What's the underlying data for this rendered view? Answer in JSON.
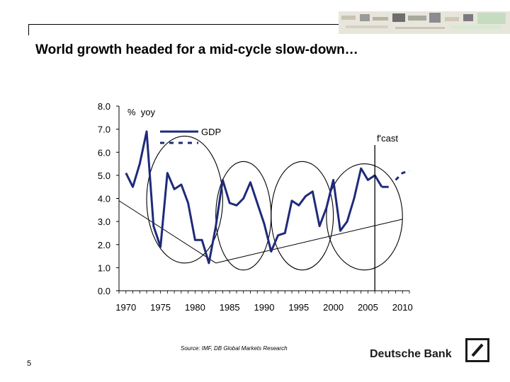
{
  "slide": {
    "title": "World growth headed for a mid-cycle slow-down…",
    "source": "Source: IMF, DB Global Markets Research",
    "page_number": "5",
    "brand": "Deutsche Bank"
  },
  "colors": {
    "series": "#1f2a7a",
    "ink": "#000000"
  },
  "chart_data": {
    "type": "line",
    "unit_label": "%  yoy",
    "forecast_label": "f'cast",
    "ylim": [
      0,
      8
    ],
    "xlim": [
      1969,
      2011
    ],
    "yticks": [
      "0.0",
      "1.0",
      "2.0",
      "3.0",
      "4.0",
      "5.0",
      "6.0",
      "7.0",
      "8.0"
    ],
    "xticks": [
      "1970",
      "1975",
      "1980",
      "1985",
      "1990",
      "1995",
      "2000",
      "2005",
      "2010"
    ],
    "legend": {
      "position": "top-left",
      "entries": [
        "GDP",
        ""
      ]
    },
    "series": [
      {
        "name": "GDP",
        "style": "solid",
        "x": [
          1970,
          1971,
          1972,
          1973,
          1974,
          1975,
          1976,
          1977,
          1978,
          1979,
          1980,
          1981,
          1982,
          1983,
          1984,
          1985,
          1986,
          1987,
          1988,
          1989,
          1990,
          1991,
          1992,
          1993,
          1994,
          1995,
          1996,
          1997,
          1998,
          1999,
          2000,
          2001,
          2002,
          2003,
          2004,
          2005,
          2006,
          2007
        ],
        "values": [
          5.1,
          4.5,
          5.5,
          6.9,
          2.8,
          1.9,
          5.1,
          4.4,
          4.6,
          3.8,
          2.2,
          2.2,
          1.2,
          2.8,
          4.8,
          3.8,
          3.7,
          4.0,
          4.7,
          3.8,
          2.9,
          1.7,
          2.4,
          2.5,
          3.9,
          3.7,
          4.1,
          4.3,
          2.8,
          3.6,
          4.8,
          2.6,
          3.0,
          4.0,
          5.3,
          4.8,
          5.0,
          4.5
        ]
      },
      {
        "name": "",
        "style": "solid",
        "x": [
          2007,
          2008
        ],
        "values": [
          4.5,
          4.5
        ]
      },
      {
        "name": "",
        "style": "dashed",
        "x": [
          2009,
          2010,
          2011
        ],
        "values": [
          4.8,
          5.1,
          5.2
        ]
      }
    ],
    "trend_lines": [
      {
        "x": [
          1969,
          1983
        ],
        "values": [
          3.9,
          1.2
        ]
      },
      {
        "x": [
          1983,
          2010
        ],
        "values": [
          1.2,
          3.1
        ]
      }
    ],
    "cycle_ellipses": [
      {
        "x_range": [
          1973,
          1984
        ],
        "y_range": [
          1.2,
          6.7
        ]
      },
      {
        "x_range": [
          1983,
          1991
        ],
        "y_range": [
          0.9,
          5.6
        ]
      },
      {
        "x_range": [
          1991,
          2000
        ],
        "y_range": [
          0.9,
          5.6
        ]
      },
      {
        "x_range": [
          1999,
          2010
        ],
        "y_range": [
          0.9,
          5.5
        ]
      }
    ],
    "forecast_marker_x": 2006
  }
}
